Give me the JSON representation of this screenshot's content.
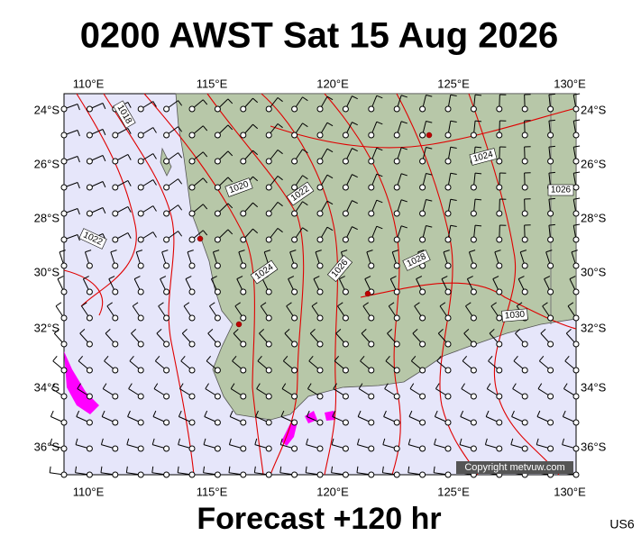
{
  "header": {
    "title": "0200 AWST Sat 15 Aug 2026"
  },
  "axes": {
    "lon_labels": [
      "110°E",
      "115°E",
      "120°E",
      "125°E",
      "130°E"
    ],
    "lat_labels": [
      "24°S",
      "26°S",
      "28°S",
      "30°S",
      "32°S",
      "34°S",
      "36°S"
    ]
  },
  "isobar_labels": [
    "1018",
    "1020",
    "1022",
    "1022",
    "1024",
    "1026",
    "1028",
    "1024",
    "1026",
    "1030"
  ],
  "copyright": "Copyright metvuw.com",
  "footer": {
    "forecast": "Forecast +120 hr",
    "code": "US6"
  }
}
